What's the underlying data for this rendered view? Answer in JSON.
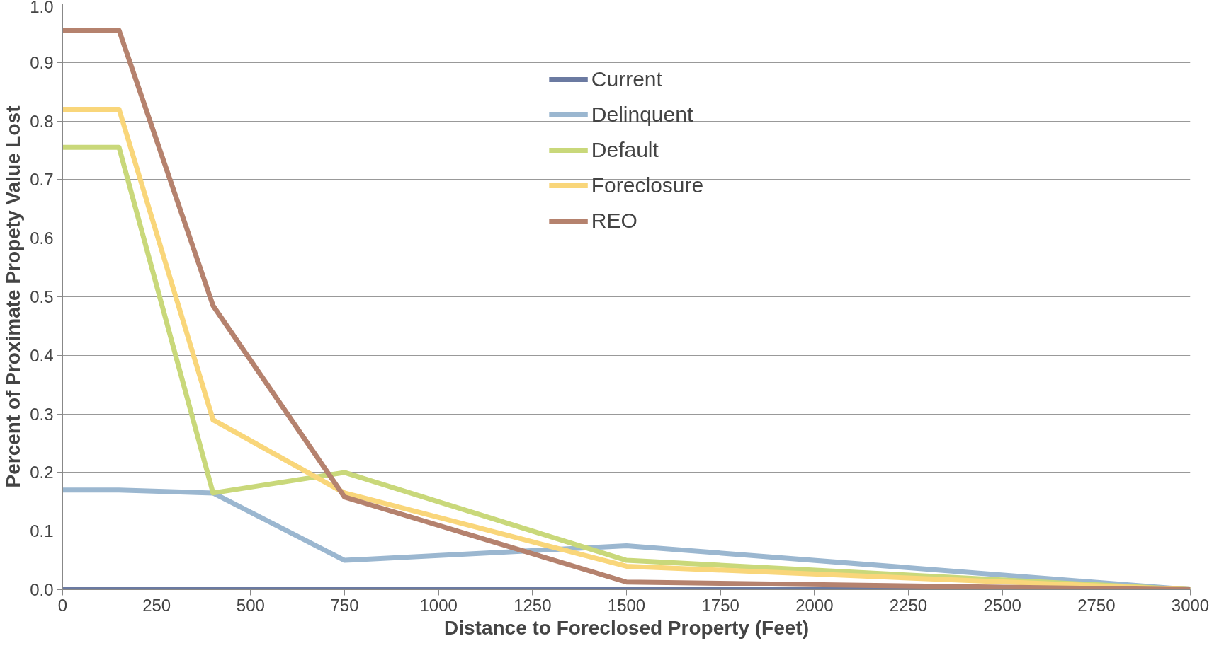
{
  "chart_data": {
    "type": "line",
    "xlabel": "Distance to Foreclosed Property (Feet)",
    "ylabel": "Percent of Proximate Propety Value Lost",
    "x": [
      0,
      150,
      400,
      750,
      1500,
      3000
    ],
    "series": [
      {
        "name": "Current",
        "color": "#6b7aa1",
        "values": [
          0,
          0,
          0,
          0,
          0,
          0
        ]
      },
      {
        "name": "Delinquent",
        "color": "#9bb7d0",
        "values": [
          0.17,
          0.17,
          0.165,
          0.05,
          0.075,
          0.0
        ]
      },
      {
        "name": "Default",
        "color": "#c9d87a",
        "values": [
          0.755,
          0.755,
          0.165,
          0.2,
          0.05,
          0.0
        ]
      },
      {
        "name": "Foreclosure",
        "color": "#f9d67a",
        "values": [
          0.82,
          0.82,
          0.29,
          0.165,
          0.04,
          0.0
        ]
      },
      {
        "name": "REO",
        "color": "#b5826e",
        "values": [
          0.955,
          0.955,
          0.485,
          0.158,
          0.013,
          0.0
        ]
      }
    ],
    "xlim": [
      0,
      3000
    ],
    "xticks": [
      0,
      250,
      500,
      750,
      1000,
      1250,
      1500,
      1750,
      2000,
      2250,
      2500,
      2750,
      3000
    ],
    "ylim": [
      0,
      1.0
    ],
    "yticks": [
      {
        "value": 0,
        "label": "0.0"
      },
      0.1,
      0.2,
      0.3,
      0.4,
      0.5,
      0.6,
      0.7,
      0.8,
      0.9,
      {
        "value": 1.0,
        "label": "1.0"
      }
    ],
    "grid": "y",
    "legend": "top",
    "marker": "none",
    "line_style": "solid"
  }
}
